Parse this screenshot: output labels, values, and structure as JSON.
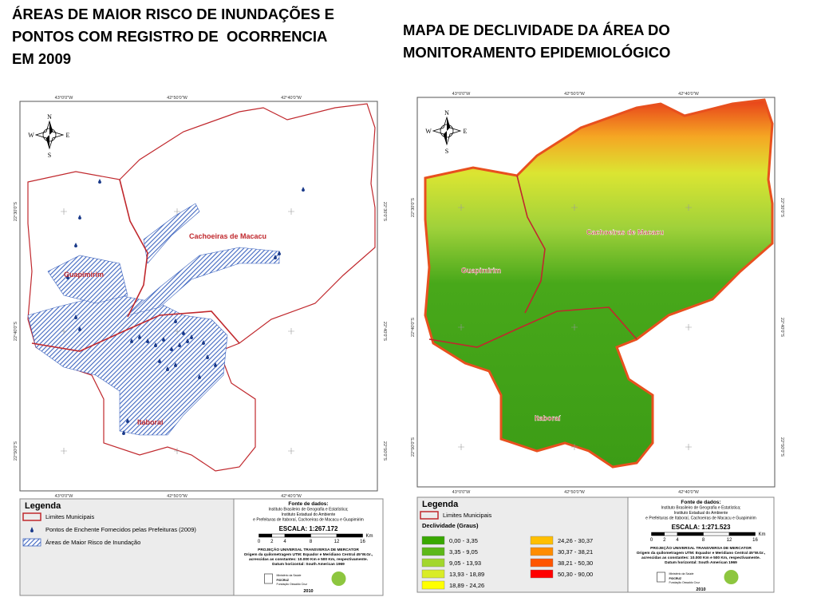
{
  "panels": [
    {
      "title": [
        "ÁREAS DE MAIOR RISCO DE INUNDAÇÕES E",
        "PONTOS COM REGISTRO DE  OCORRENCIA",
        "EM 2009"
      ],
      "map": {
        "lon": [
          "43°0'0\"W",
          "42°50'0\"W",
          "42°40'0\"W"
        ],
        "lat": [
          "22°30'0\"S",
          "22°40'0\"S",
          "22°50'0\"S"
        ],
        "compass": {
          "n": "N",
          "s": "S",
          "e": "E",
          "w": "W"
        },
        "places": [
          "Cachoeiras de Macacu",
          "Guapimirim",
          "Itaboraí"
        ]
      },
      "legend": {
        "title": "Legenda",
        "items": [
          {
            "label": "Limites Municipais",
            "color": "#c0282d"
          },
          {
            "label": "Pontos de Enchente Fornecidos pelas Prefeituras (2009)",
            "color": "#1a3a8a"
          },
          {
            "label": "Áreas de Maior Risco de Inundação",
            "color": "#3f66c0"
          }
        ]
      },
      "info": {
        "source": [
          "Fonte de dados:",
          "Instituto Brasileiro de Geografia e Estatística;",
          "Instituto Estadual do Ambiente",
          "e Prefeituras de Itaboraí, Cachoeiras de Macacu e Guapimirim"
        ],
        "scale": "ESCALA: 1:267.172",
        "scale_ticks": [
          0,
          2,
          4,
          8,
          12,
          16
        ],
        "scale_unit": "Km",
        "projection": [
          "PROJEÇÃO UNIVERSAL TRANSVERSA DE MERCATOR",
          "Origem da quilometragem UTM: Equador e Meridiano Central 45°W.Gr.,",
          "acrescidas as constantes: 10.000 Km e 500 Km, respectivamente.",
          "Datum horizontal: South American 1969"
        ],
        "logos": [
          "Ministério da Saúde",
          "FIOCRUZ",
          "Fundação Oswaldo Cruz"
        ],
        "year": "2010"
      }
    },
    {
      "title": [
        "MAPA DE DECLIVIDADE DA ÁREA DO",
        "MONITORAMENTO EPIDEMIOLÓGICO"
      ],
      "map": {
        "lon": [
          "43°0'0\"W",
          "42°50'0\"W",
          "42°40'0\"W"
        ],
        "lat": [
          "22°30'0\"S",
          "22°40'0\"S",
          "22°50'0\"S"
        ],
        "compass": {
          "n": "N",
          "s": "S",
          "e": "E",
          "w": "W"
        },
        "places": [
          "Cachoeiras de Macacu",
          "Guapimirim",
          "Itaboraí"
        ]
      },
      "legend": {
        "title": "Legenda",
        "items": [
          {
            "label": "Limites Municipais",
            "color": "#c0282d"
          }
        ],
        "classes_title": "Declividade (Graus)",
        "classes": [
          {
            "label": "0,00 - 3,35",
            "color": "#38a800"
          },
          {
            "label": "3,35 - 9,05",
            "color": "#5cb818"
          },
          {
            "label": "9,05 - 13,93",
            "color": "#a3d72d"
          },
          {
            "label": "13,93 - 18,89",
            "color": "#d9ec26"
          },
          {
            "label": "18,89 - 24,26",
            "color": "#ffff00"
          },
          {
            "label": "24,26 - 30,37",
            "color": "#ffbf00"
          },
          {
            "label": "30,37 - 38,21",
            "color": "#ff8c00"
          },
          {
            "label": "38,21 - 50,30",
            "color": "#ff5500"
          },
          {
            "label": "50,30 - 90,00",
            "color": "#ff0000"
          }
        ]
      },
      "info": {
        "source": [
          "Fonte de dados:",
          "Instituto Brasileiro de Geografia e Estatística;",
          "Instituto Estadual do Ambiente",
          "e Prefeituras de Itaboraí, Cachoeiras de Macacu e Guapimirim"
        ],
        "scale": "ESCALA: 1:271.523",
        "scale_ticks": [
          0,
          2,
          4,
          8,
          12,
          16
        ],
        "scale_unit": "Km",
        "projection": [
          "PROJEÇÃO UNIVERSAL TRANSVERSA DE MERCATOR",
          "Origem da quilometragem UTM: Equador e Meridiano Central 45°W.Gr.,",
          "acrescidas as constantes: 10.000 Km e 500 Km, respectivamente.",
          "Datum horizontal: South American 1969"
        ],
        "logos": [
          "Ministério da Saúde",
          "FIOCRUZ",
          "Fundação Oswaldo Cruz"
        ],
        "year": "2010"
      }
    }
  ]
}
